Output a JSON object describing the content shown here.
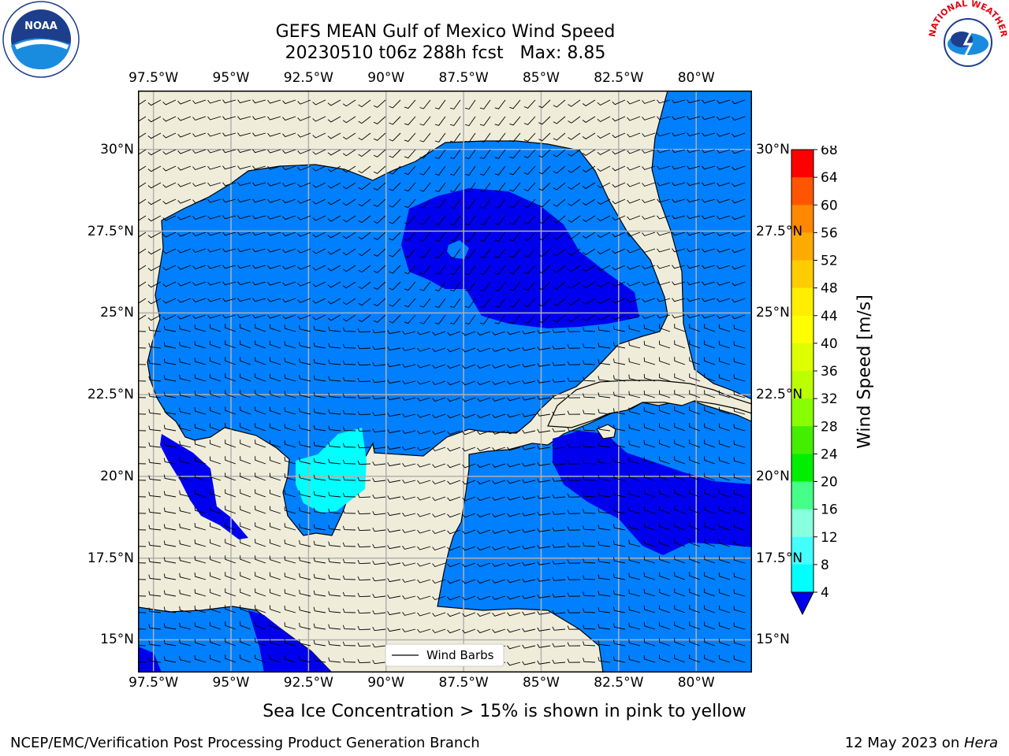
{
  "title": {
    "line1": "GEFS MEAN Gulf of Mexico Wind Speed",
    "line2": "20230510 t06z 288h fcst   Max: 8.85"
  },
  "map": {
    "lon_ticks": [
      "97.5°W",
      "95°W",
      "92.5°W",
      "90°W",
      "87.5°W",
      "85°W",
      "82.5°W",
      "80°W"
    ],
    "lat_ticks": [
      "30°N",
      "27.5°N",
      "25°N",
      "22.5°N",
      "20°N",
      "17.5°N",
      "15°N"
    ],
    "lon_range": [
      -98,
      -78.2
    ],
    "lat_range": [
      14,
      31.8
    ],
    "legend": "Wind Barbs",
    "colors": {
      "land": "#efedda",
      "ocean": "#0080ff",
      "low_wind": "#0000ee",
      "mid_wind": "#00ffff"
    }
  },
  "colorbar": {
    "label": "Wind Speed [m/s]",
    "ticks": [
      "68",
      "64",
      "60",
      "56",
      "52",
      "48",
      "44",
      "40",
      "36",
      "32",
      "28",
      "24",
      "20",
      "16",
      "12",
      "8",
      "4"
    ],
    "colors": [
      "#ff0000",
      "#ff3300",
      "#ff5500",
      "#ff8800",
      "#ffaa00",
      "#ffcc00",
      "#ffee00",
      "#ffff00",
      "#ddff00",
      "#bbff00",
      "#88ff00",
      "#44ee00",
      "#00ee00",
      "#44ff88",
      "#88ffdd",
      "#44ffff",
      "#00ffff",
      "#0080ff"
    ],
    "under_color": "#0000ee"
  },
  "note": "Sea Ice Concentration > 15% is shown in pink to yellow",
  "footer": {
    "left": "NCEP/EMC/Verification Post Processing Product Generation Branch",
    "right_prefix": "12 May 2023 on ",
    "right_host": "Hera"
  },
  "logos": {
    "noaa_text": "NOAA",
    "nws_text": "NATIONAL WEATHER SERVICE"
  }
}
